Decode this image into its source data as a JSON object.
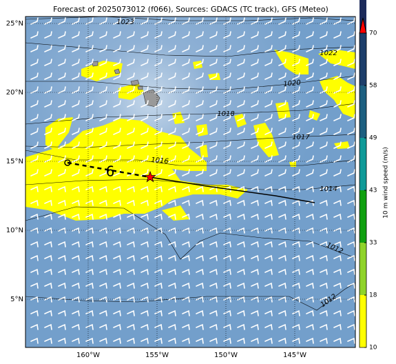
{
  "title": "Forecast of 2025073012 (f066), Sources: GDACS (TC track), GFS (Meteo)",
  "map": {
    "lon_range": [
      -164.55,
      -140.6
    ],
    "lat_range": [
      1.5,
      25.5
    ],
    "xticks": [
      {
        "value": -160,
        "label": "160°W"
      },
      {
        "value": -155,
        "label": "155°W"
      },
      {
        "value": -150,
        "label": "150°W"
      },
      {
        "value": -145,
        "label": "145°W"
      }
    ],
    "yticks": [
      {
        "value": 5,
        "label": "5°N"
      },
      {
        "value": 10,
        "label": "10°N"
      },
      {
        "value": 15,
        "label": "15°N"
      },
      {
        "value": 20,
        "label": "20°N"
      },
      {
        "value": 25,
        "label": "25°N"
      }
    ]
  },
  "isobar_labels": [
    1023,
    1022,
    1020,
    1018,
    1017,
    1016,
    1014,
    1012,
    1012
  ],
  "track": {
    "past": {
      "lon": [
        -161.5,
        -155.5
      ],
      "lat": [
        14.9,
        13.85
      ]
    },
    "forecast": {
      "lon": [
        -155.5,
        -151.4,
        -146.4,
        -143.55
      ],
      "lat": [
        13.85,
        13.2,
        12.5,
        12.0
      ]
    }
  },
  "colorbar": {
    "label": "10 m wind speed (m/s)",
    "ticks": [
      10,
      18,
      33,
      43,
      49,
      58,
      70
    ],
    "colors": [
      "#ffff00",
      "#8fd32a",
      "#10a010",
      "#0f9a98",
      "#1d5f80",
      "#1d3e6a",
      "#1b2a5a"
    ],
    "extend_color": "#ff0000"
  }
}
